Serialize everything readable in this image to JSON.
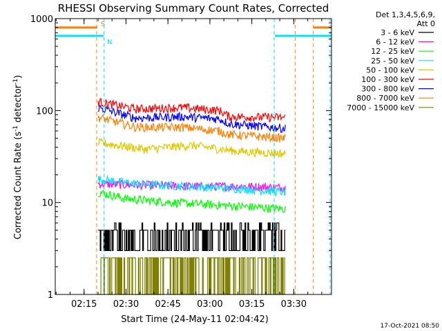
{
  "chart_data": {
    "type": "line",
    "title": "RHESSI Observing Summary Count Rates, Corrected",
    "xlabel": "Start Time (24-May-11 02:04:42)",
    "ylabel": "Corrected Count Rate (s",
    "ylabel_sup1": "-1",
    "ylabel_mid": " detector",
    "ylabel_sup2": "-1",
    "ylabel_end": ")",
    "yscale": "log",
    "ylim": [
      1,
      1000
    ],
    "y_ticks": [
      "1",
      "10",
      "100",
      "1000"
    ],
    "xlim": [
      "02:04:42",
      "03:43:30"
    ],
    "x_ticks": [
      "02:15",
      "02:30",
      "02:45",
      "03:00",
      "03:15",
      "03:30"
    ],
    "legend_header": [
      "Det 1,3,4,5,6,9,",
      "Att 0"
    ],
    "legend_position": "outside-right",
    "footer_timestamp": "17-Oct-2021 08:50",
    "flags": [
      {
        "label": "S",
        "color": "#ff7f00",
        "y": 800,
        "x_start": "02:04:42",
        "x_end": "02:19:45",
        "x_resume": "03:37:00",
        "x_resume_end": "03:43:30"
      },
      {
        "label": "N",
        "color": "#00e0ff",
        "y": 650,
        "x_start": "02:04:42",
        "x_end": "02:22:00",
        "x_resume": "03:23:15",
        "x_resume_end": "03:43:30"
      }
    ],
    "markers": [
      {
        "x": "02:19:30",
        "color": "#ff7f00"
      },
      {
        "x": "02:22:10",
        "color": "#00e0ff"
      },
      {
        "x": "03:23:00",
        "color": "#00e0ff"
      },
      {
        "x": "03:30:30",
        "color": "#ff7f00"
      },
      {
        "x": "03:37:00",
        "color": "#ff7f00"
      },
      {
        "x": "03:43:00",
        "color": "#00e0ff"
      }
    ],
    "data_x_range": [
      "02:20:00",
      "03:27:00"
    ],
    "series": [
      {
        "name": "3 - 6 keV",
        "color": "#000000",
        "shape": "binary",
        "low": 3,
        "high": 5,
        "keypoints": [
          [
            0,
            4
          ],
          [
            1,
            4
          ]
        ]
      },
      {
        "name": "6 - 12 keV",
        "color": "#ff00ff",
        "shape": "noisy",
        "keypoints": [
          [
            0,
            16
          ],
          [
            0.2,
            15.5
          ],
          [
            0.5,
            15
          ],
          [
            0.8,
            15
          ],
          [
            1,
            14.5
          ]
        ]
      },
      {
        "name": "12 - 25 keV",
        "color": "#00ff00",
        "shape": "noisy",
        "keypoints": [
          [
            0,
            13
          ],
          [
            0.15,
            11
          ],
          [
            0.4,
            10
          ],
          [
            0.6,
            9.5
          ],
          [
            0.8,
            9
          ],
          [
            1,
            8.5
          ]
        ]
      },
      {
        "name": "25 - 50 keV",
        "color": "#00e0ff",
        "shape": "noisy",
        "keypoints": [
          [
            0,
            18
          ],
          [
            0.2,
            16
          ],
          [
            0.5,
            15
          ],
          [
            0.8,
            14
          ],
          [
            1,
            13
          ]
        ]
      },
      {
        "name": "50 - 100 keV",
        "color": "#e0c800",
        "shape": "noisy",
        "keypoints": [
          [
            0,
            45
          ],
          [
            0.25,
            38
          ],
          [
            0.5,
            42
          ],
          [
            0.75,
            36
          ],
          [
            1,
            34
          ]
        ]
      },
      {
        "name": "100 - 300 keV",
        "color": "#ff0000",
        "shape": "noisy",
        "keypoints": [
          [
            0,
            125
          ],
          [
            0.2,
            104
          ],
          [
            0.45,
            108
          ],
          [
            0.65,
            100
          ],
          [
            0.7,
            86
          ],
          [
            1,
            84
          ]
        ]
      },
      {
        "name": "300 - 800 keV",
        "color": "#0000ff",
        "shape": "noisy",
        "keypoints": [
          [
            0,
            108
          ],
          [
            0.2,
            83
          ],
          [
            0.45,
            86
          ],
          [
            0.65,
            81
          ],
          [
            0.7,
            72
          ],
          [
            1,
            64
          ]
        ]
      },
      {
        "name": "800 - 7000 keV",
        "color": "#ff7f00",
        "shape": "noisy",
        "keypoints": [
          [
            0,
            85
          ],
          [
            0.2,
            66
          ],
          [
            0.45,
            66
          ],
          [
            0.65,
            60
          ],
          [
            0.7,
            55
          ],
          [
            1,
            50
          ]
        ]
      },
      {
        "name": "7000 - 15000 keV",
        "color": "#808000",
        "shape": "binary",
        "low": 1,
        "high": 2.5,
        "keypoints": [
          [
            0,
            2
          ],
          [
            1,
            2
          ]
        ]
      }
    ]
  }
}
